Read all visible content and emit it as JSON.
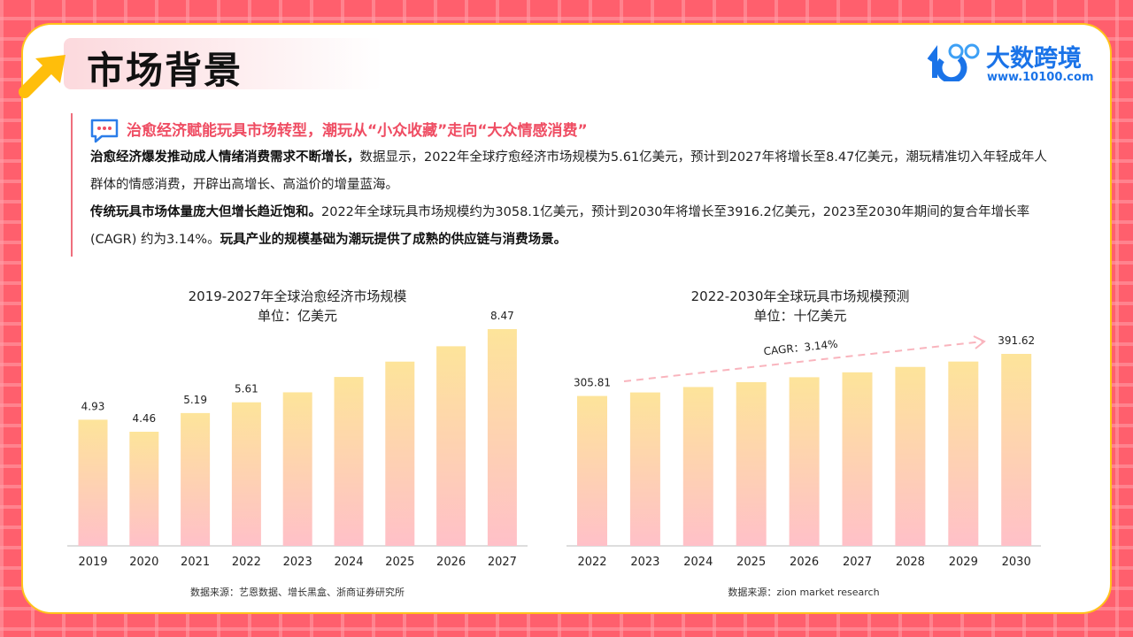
{
  "header": {
    "title": "市场背景",
    "logo_text": "大数跨境",
    "logo_url": "www.10100.com",
    "logo_mark": "10100"
  },
  "intro": {
    "subtitle": "治愈经济赋能玩具市场转型，潮玩从“小众收藏”走向“大众情感消费”",
    "p1_bold": "治愈经济爆发推动成人情绪消费需求不断增长，",
    "p1_text": "数据显示，2022年全球疗愈经济市场规模为5.61亿美元，预计到2027年将增长至8.47亿美元，潮玩精准切入年轻成年人群体的情感消费，开辟出高增长、高溢价的增量蓝海。",
    "p2_bold": "传统玩具市场体量庞大但增长趋近饱和。",
    "p2_text": "2022年全球玩具市场规模约为3058.1亿美元，预计到2030年将增长至3916.2亿美元，2023至2030年期间的复合年增长率 (CAGR) 约为3.14%。",
    "p2_bold2": "玩具产业的规模基础为潮玩提供了成熟的供应链与消费场景。"
  },
  "colors": {
    "bar_top": "#fde49a",
    "bar_bottom": "#ffc0c8",
    "accent": "#ef4d63",
    "background": "#ff5f6d"
  },
  "chart_data": [
    {
      "type": "bar",
      "title": "2019-2027年全球治愈经济市场规模",
      "subtitle": "单位：亿美元",
      "categories": [
        "2019",
        "2020",
        "2021",
        "2022",
        "2023",
        "2024",
        "2025",
        "2026",
        "2027"
      ],
      "values": [
        4.93,
        4.46,
        5.19,
        5.61,
        6.0,
        6.6,
        7.2,
        7.8,
        8.47
      ],
      "labels": [
        "4.93",
        "4.46",
        "5.19",
        "5.61",
        "",
        "",
        "",
        "",
        "8.47"
      ],
      "ylim": [
        0,
        8.47
      ],
      "grid": false,
      "source": "数据来源：艺恩数据、增长黑盒、浙商证券研究所"
    },
    {
      "type": "bar",
      "title": "2022-2030年全球玩具市场规模预测",
      "subtitle": "单位：十亿美元",
      "categories": [
        "2022",
        "2023",
        "2024",
        "2025",
        "2026",
        "2027",
        "2028",
        "2029",
        "2030"
      ],
      "values": [
        305.81,
        313,
        324,
        334,
        344,
        354,
        365,
        376,
        391.62
      ],
      "labels": [
        "305.81",
        "",
        "",
        "",
        "",
        "",
        "",
        "",
        "391.62"
      ],
      "ylim": [
        0,
        391.62
      ],
      "grid": false,
      "annotation": "CAGR：3.14%",
      "source": "数据来源：zion market research"
    }
  ]
}
